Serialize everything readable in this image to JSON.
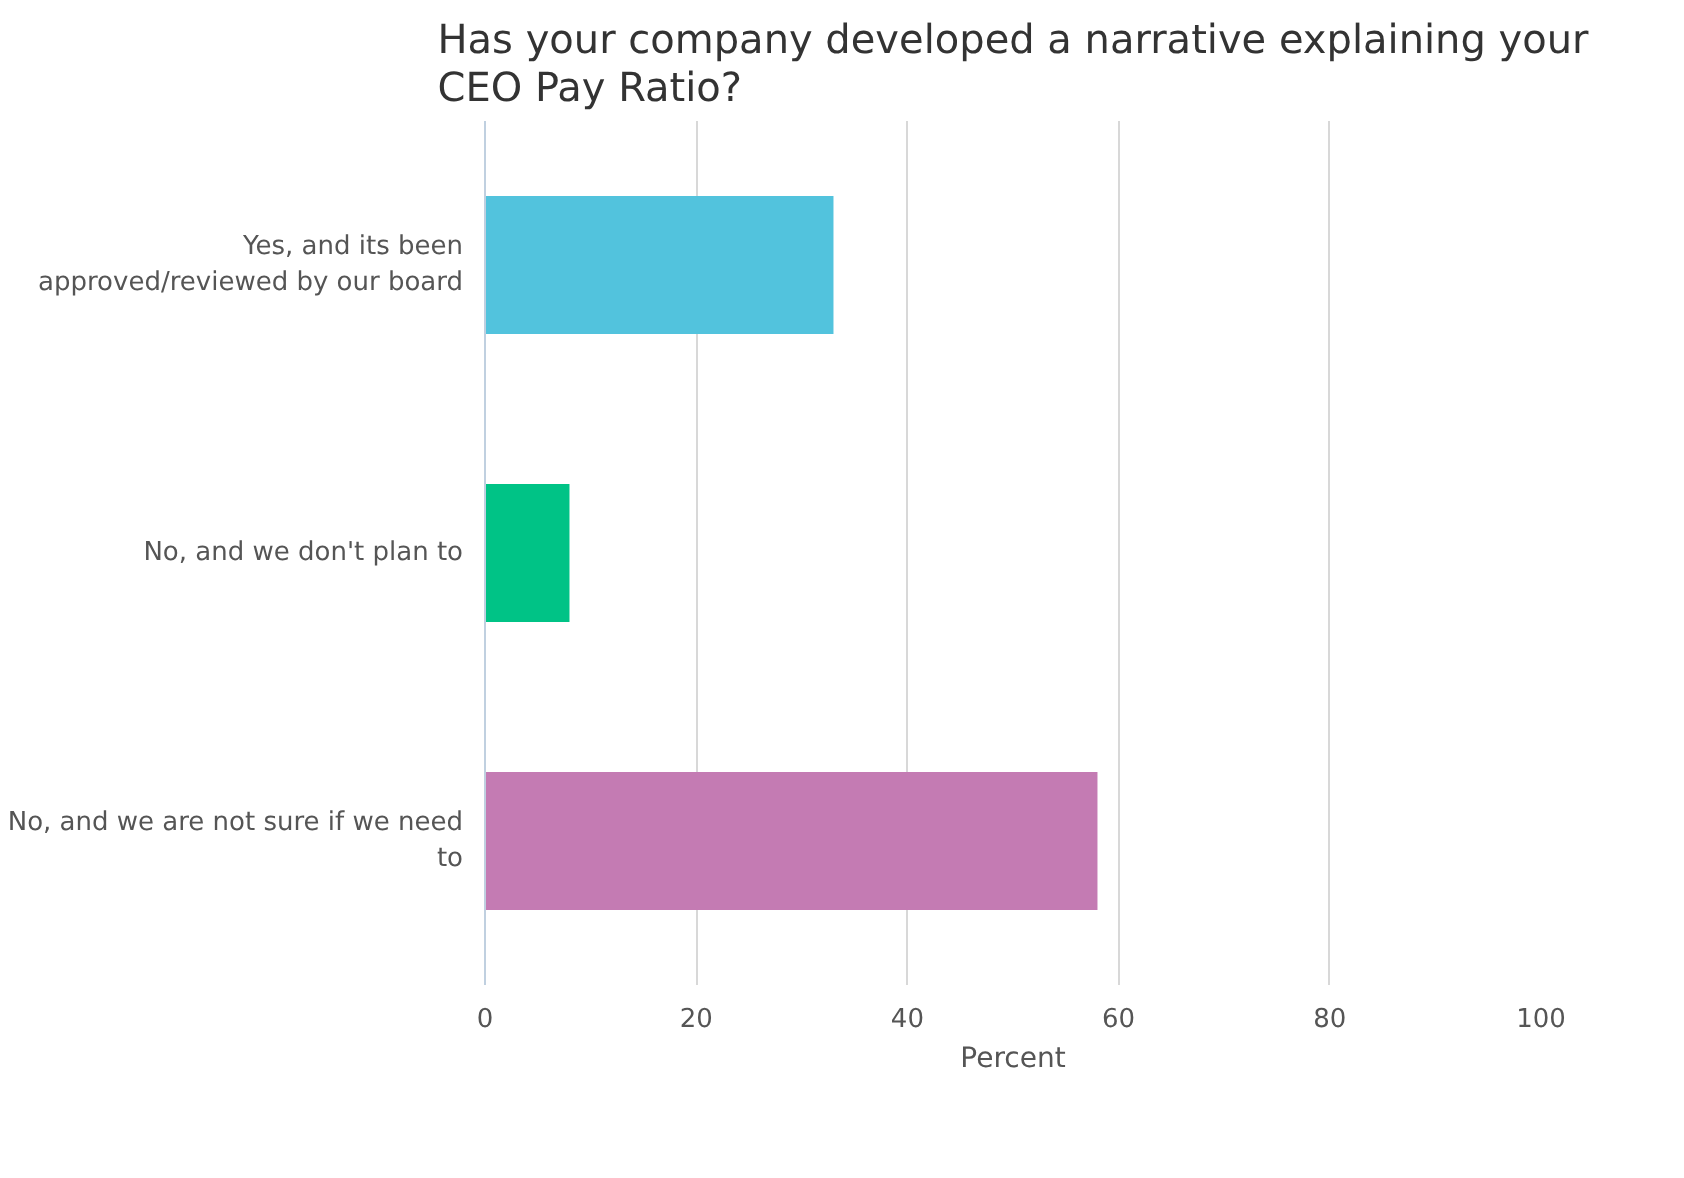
{
  "chart_data": {
    "type": "bar",
    "orientation": "horizontal",
    "title": "Has your company developed a narrative explaining your CEO Pay Ratio?",
    "xlabel": "Percent",
    "categories": [
      "Yes, and its been approved/reviewed by our board",
      "No, and we don't plan to",
      "No, and we are not sure if we need to"
    ],
    "values": [
      33,
      8,
      58
    ],
    "colors": [
      "#52c3dd",
      "#00c386",
      "#c47bb3"
    ],
    "xlim": [
      0,
      100
    ],
    "xticks": [
      0,
      20,
      40,
      60,
      80,
      100
    ],
    "grid": "x"
  }
}
